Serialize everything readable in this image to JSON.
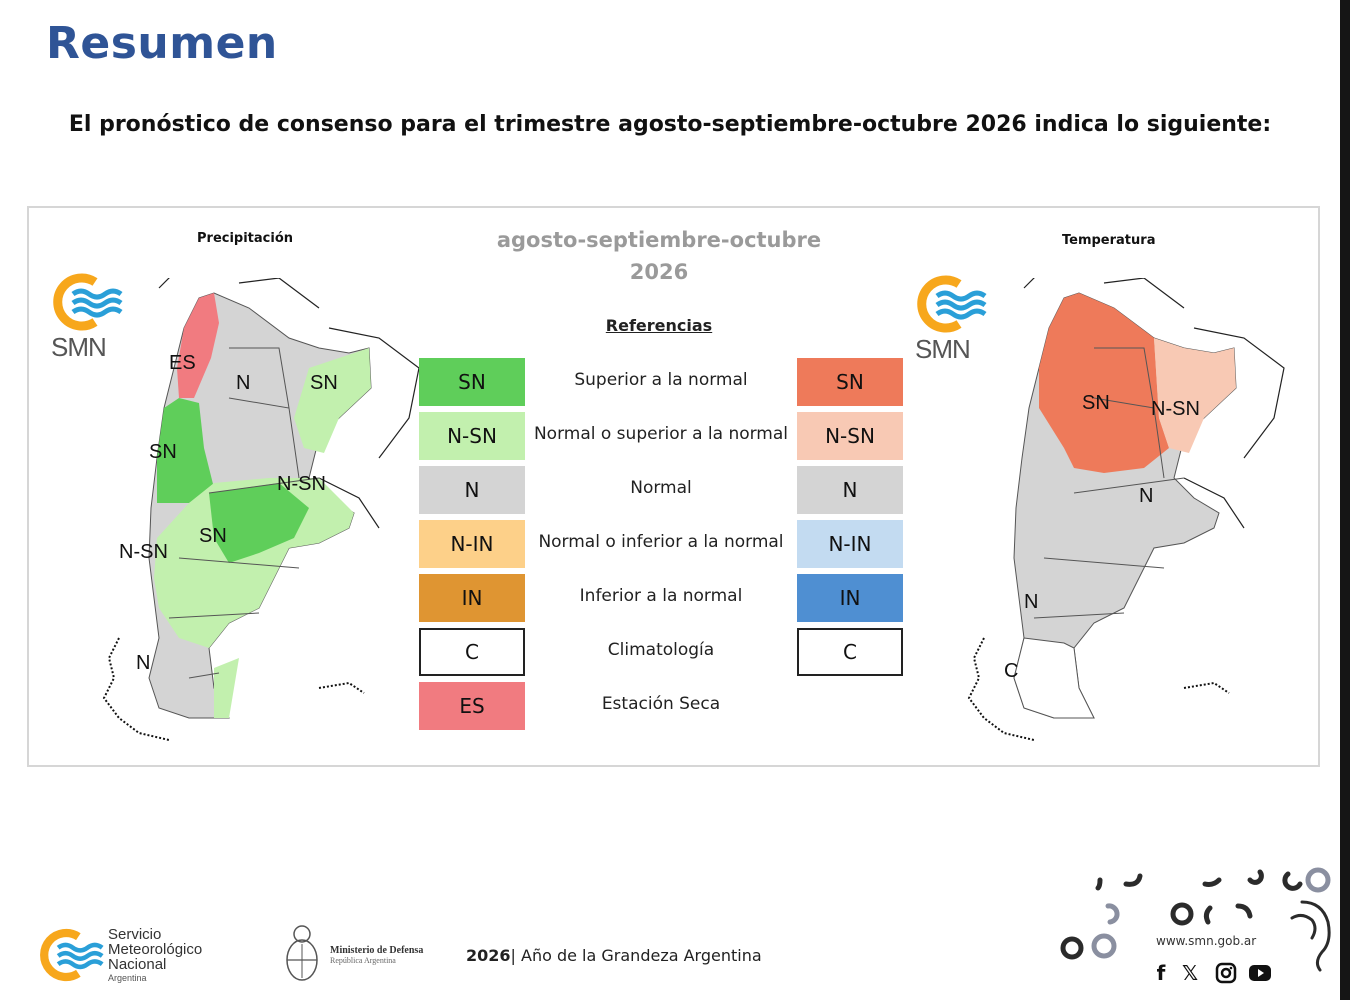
{
  "header": {
    "title": "Resumen",
    "subtitle": "El pronóstico de consenso para el trimestre agosto-septiembre-octubre 2026 indica lo siguiente:"
  },
  "panel": {
    "season_line1": "agosto-septiembre-octubre",
    "season_line2": "2026",
    "references_title": "Referencias",
    "precip_map": {
      "title": "Precipitación",
      "logo_text": "SMN",
      "region_labels": [
        "ES",
        "N",
        "SN",
        "SN",
        "N-SN",
        "SN",
        "N-SN",
        "N"
      ]
    },
    "temp_map": {
      "title": "Temperatura",
      "logo_text": "SMN",
      "region_labels": [
        "SN",
        "N-SN",
        "N",
        "N",
        "C"
      ]
    },
    "legend": [
      {
        "code": "SN",
        "description": "Superior a la normal",
        "precip_color": "#5fce5a",
        "temp_color": "#ee7a5a"
      },
      {
        "code": "N-SN",
        "description": "Normal o superior a la normal",
        "precip_color": "#c2f0ae",
        "temp_color": "#f8c9b4"
      },
      {
        "code": "N",
        "description": "Normal",
        "precip_color": "#d4d4d4",
        "temp_color": "#d4d4d4"
      },
      {
        "code": "N-IN",
        "description": "Normal o inferior a la normal",
        "precip_color": "#fdd089",
        "temp_color": "#c3dbf1"
      },
      {
        "code": "IN",
        "description": "Inferior a la normal",
        "precip_color": "#df9532",
        "temp_color": "#4f8fd2"
      },
      {
        "code": "C",
        "description": "Climatología",
        "precip_color": "#ffffff",
        "temp_color": "#ffffff"
      },
      {
        "code": "ES",
        "description": "Estación Seca",
        "precip_color": "#f17b80"
      }
    ]
  },
  "footer": {
    "org_line1": "Servicio",
    "org_line2": "Meteorológico",
    "org_line3": "Nacional",
    "org_line4": "Argentina",
    "ministry_line1": "Ministerio de Defensa",
    "ministry_line2": "República Argentina",
    "year": "2026",
    "year_text": "| Año de la Grandeza Argentina",
    "url": "www.smn.gob.ar",
    "social_icons": [
      "facebook-icon",
      "x-icon",
      "instagram-icon",
      "youtube-icon"
    ]
  },
  "colors": {
    "title": "#2f5496",
    "smn_orange": "#f7a71c",
    "smn_blue": "#2a9fd8"
  }
}
